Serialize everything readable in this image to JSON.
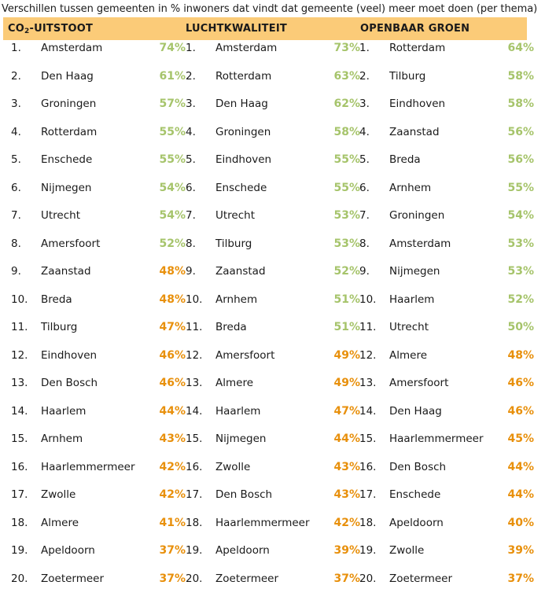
{
  "title": "Verschillen tussen gemeenten in % inwoners dat vindt dat gemeente (veel) meer moet doen (per thema)",
  "colors": {
    "header_bg": "#fbcb78",
    "high": "#a6c46b",
    "low": "#e8900c"
  },
  "columns": [
    {
      "header_pre": "CO",
      "header_sub": "2",
      "header_post": "-UITSTOOT",
      "rows": [
        {
          "rank": "1.",
          "name": "Amsterdam",
          "pct": "74%",
          "tone": "high"
        },
        {
          "rank": "2.",
          "name": "Den Haag",
          "pct": "61%",
          "tone": "high"
        },
        {
          "rank": "3.",
          "name": "Groningen",
          "pct": "57%",
          "tone": "high"
        },
        {
          "rank": "4.",
          "name": "Rotterdam",
          "pct": "55%",
          "tone": "high"
        },
        {
          "rank": "5.",
          "name": "Enschede",
          "pct": "55%",
          "tone": "high"
        },
        {
          "rank": "6.",
          "name": "Nijmegen",
          "pct": "54%",
          "tone": "high"
        },
        {
          "rank": "7.",
          "name": "Utrecht",
          "pct": "54%",
          "tone": "high"
        },
        {
          "rank": "8.",
          "name": "Amersfoort",
          "pct": "52%",
          "tone": "high"
        },
        {
          "rank": "9.",
          "name": "Zaanstad",
          "pct": "48%",
          "tone": "low"
        },
        {
          "rank": "10.",
          "name": "Breda",
          "pct": "48%",
          "tone": "low"
        },
        {
          "rank": "11.",
          "name": "Tilburg",
          "pct": "47%",
          "tone": "low"
        },
        {
          "rank": "12.",
          "name": "Eindhoven",
          "pct": "46%",
          "tone": "low"
        },
        {
          "rank": "13.",
          "name": "Den Bosch",
          "pct": "46%",
          "tone": "low"
        },
        {
          "rank": "14.",
          "name": "Haarlem",
          "pct": "44%",
          "tone": "low"
        },
        {
          "rank": "15.",
          "name": "Arnhem",
          "pct": "43%",
          "tone": "low"
        },
        {
          "rank": "16.",
          "name": "Haarlemmermeer",
          "pct": "42%",
          "tone": "low"
        },
        {
          "rank": "17.",
          "name": "Zwolle",
          "pct": "42%",
          "tone": "low"
        },
        {
          "rank": "18.",
          "name": "Almere",
          "pct": "41%",
          "tone": "low"
        },
        {
          "rank": "19.",
          "name": "Apeldoorn",
          "pct": "37%",
          "tone": "low"
        },
        {
          "rank": "20.",
          "name": "Zoetermeer",
          "pct": "37%",
          "tone": "low"
        }
      ]
    },
    {
      "header_pre": "LUCHTKWALITEIT",
      "header_sub": "",
      "header_post": "",
      "rows": [
        {
          "rank": "1.",
          "name": "Amsterdam",
          "pct": "73%",
          "tone": "high"
        },
        {
          "rank": "2.",
          "name": "Rotterdam",
          "pct": "63%",
          "tone": "high"
        },
        {
          "rank": "3.",
          "name": "Den Haag",
          "pct": "62%",
          "tone": "high"
        },
        {
          "rank": "4.",
          "name": "Groningen",
          "pct": "58%",
          "tone": "high"
        },
        {
          "rank": "5.",
          "name": "Eindhoven",
          "pct": "55%",
          "tone": "high"
        },
        {
          "rank": "6.",
          "name": "Enschede",
          "pct": "55%",
          "tone": "high"
        },
        {
          "rank": "7.",
          "name": "Utrecht",
          "pct": "53%",
          "tone": "high"
        },
        {
          "rank": "8.",
          "name": "Tilburg",
          "pct": "53%",
          "tone": "high"
        },
        {
          "rank": "9.",
          "name": "Zaanstad",
          "pct": "52%",
          "tone": "high"
        },
        {
          "rank": "10.",
          "name": "Arnhem",
          "pct": "51%",
          "tone": "high"
        },
        {
          "rank": "11.",
          "name": "Breda",
          "pct": "51%",
          "tone": "high"
        },
        {
          "rank": "12.",
          "name": "Amersfoort",
          "pct": "49%",
          "tone": "low"
        },
        {
          "rank": "13.",
          "name": "Almere",
          "pct": "49%",
          "tone": "low"
        },
        {
          "rank": "14.",
          "name": "Haarlem",
          "pct": "47%",
          "tone": "low"
        },
        {
          "rank": "15.",
          "name": "Nijmegen",
          "pct": "44%",
          "tone": "low"
        },
        {
          "rank": "16.",
          "name": "Zwolle",
          "pct": "43%",
          "tone": "low"
        },
        {
          "rank": "17.",
          "name": "Den Bosch",
          "pct": "43%",
          "tone": "low"
        },
        {
          "rank": "18.",
          "name": "Haarlemmermeer",
          "pct": "42%",
          "tone": "low"
        },
        {
          "rank": "19.",
          "name": "Apeldoorn",
          "pct": "39%",
          "tone": "low"
        },
        {
          "rank": "20.",
          "name": "Zoetermeer",
          "pct": "37%",
          "tone": "low"
        }
      ]
    },
    {
      "header_pre": "OPENBAAR GROEN",
      "header_sub": "",
      "header_post": "",
      "rows": [
        {
          "rank": "1.",
          "name": "Rotterdam",
          "pct": "64%",
          "tone": "high"
        },
        {
          "rank": "2.",
          "name": "Tilburg",
          "pct": "58%",
          "tone": "high"
        },
        {
          "rank": "3.",
          "name": "Eindhoven",
          "pct": "58%",
          "tone": "high"
        },
        {
          "rank": "4.",
          "name": "Zaanstad",
          "pct": "56%",
          "tone": "high"
        },
        {
          "rank": "5.",
          "name": "Breda",
          "pct": "56%",
          "tone": "high"
        },
        {
          "rank": "6.",
          "name": "Arnhem",
          "pct": "55%",
          "tone": "high"
        },
        {
          "rank": "7.",
          "name": "Groningen",
          "pct": "54%",
          "tone": "high"
        },
        {
          "rank": "8.",
          "name": "Amsterdam",
          "pct": "53%",
          "tone": "high"
        },
        {
          "rank": "9.",
          "name": "Nijmegen",
          "pct": "53%",
          "tone": "high"
        },
        {
          "rank": "10.",
          "name": "Haarlem",
          "pct": "52%",
          "tone": "high"
        },
        {
          "rank": "11.",
          "name": "Utrecht",
          "pct": "50%",
          "tone": "high"
        },
        {
          "rank": "12.",
          "name": "Almere",
          "pct": "48%",
          "tone": "low"
        },
        {
          "rank": "13.",
          "name": "Amersfoort",
          "pct": "46%",
          "tone": "low"
        },
        {
          "rank": "14.",
          "name": "Den Haag",
          "pct": "46%",
          "tone": "low"
        },
        {
          "rank": "15.",
          "name": "Haarlemmermeer",
          "pct": "45%",
          "tone": "low"
        },
        {
          "rank": "16.",
          "name": "Den Bosch",
          "pct": "44%",
          "tone": "low"
        },
        {
          "rank": "17.",
          "name": "Enschede",
          "pct": "44%",
          "tone": "low"
        },
        {
          "rank": "18.",
          "name": "Apeldoorn",
          "pct": "40%",
          "tone": "low"
        },
        {
          "rank": "19.",
          "name": "Zwolle",
          "pct": "39%",
          "tone": "low"
        },
        {
          "rank": "20.",
          "name": "Zoetermeer",
          "pct": "37%",
          "tone": "low"
        }
      ]
    }
  ]
}
